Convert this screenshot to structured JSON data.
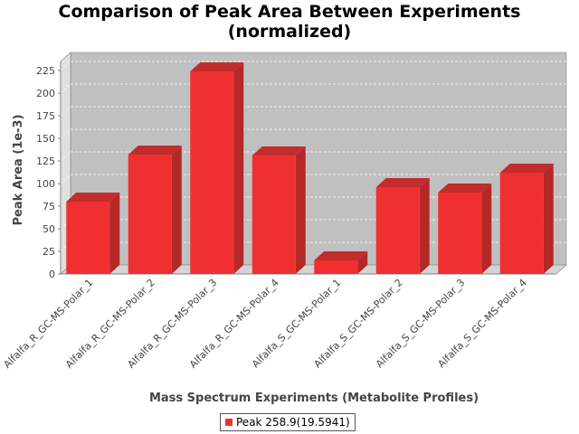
{
  "chart_data": {
    "type": "bar",
    "title_lines": [
      "Comparison of Peak Area Between Experiments",
      "(normalized)"
    ],
    "xlabel": "Mass Spectrum Experiments (Metabolite Profiles)",
    "ylabel": "Peak Area (1e-3)",
    "ylim": [
      0,
      235
    ],
    "yticks": [
      0,
      25,
      50,
      75,
      100,
      125,
      150,
      175,
      200,
      225
    ],
    "grid": true,
    "legend_position": "bottom",
    "categories": [
      "Alfalfa_R_GC-MS-Polar_1",
      "Alfalfa_R_GC-MS-Polar_2",
      "Alfalfa_R_GC-MS-Polar_3",
      "Alfalfa_R_GC-MS-Polar_4",
      "Alfalfa_S_GC-MS-Polar_1",
      "Alfalfa_S_GC-MS-Polar_2",
      "Alfalfa_S_GC-MS-Polar_3",
      "Alfalfa_S_GC-MS-Polar_4"
    ],
    "series": [
      {
        "name": "Peak 258.9(19.5941)",
        "color": "#f03030",
        "values": [
          80,
          132,
          224,
          131,
          15,
          96,
          90,
          112
        ]
      }
    ]
  }
}
